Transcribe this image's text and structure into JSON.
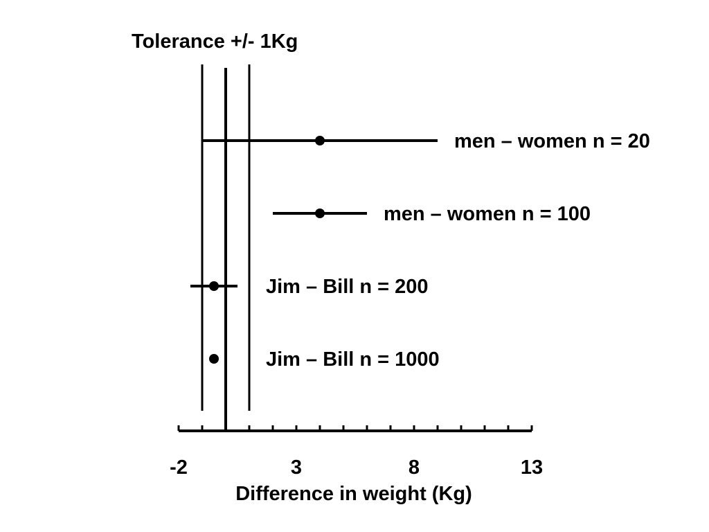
{
  "chart_data": {
    "type": "scatter",
    "title": "Tolerance +/- 1Kg",
    "xlabel": "Difference in weight (Kg)",
    "ylabel": "",
    "xlim": [
      -2,
      13
    ],
    "x_ticks": [
      "-2",
      "3",
      "8",
      "13"
    ],
    "tick_step": 1,
    "grid": false,
    "tolerance": {
      "center": 0,
      "lower": -1,
      "upper": 1
    },
    "series": [
      {
        "name": "men – women n = 20",
        "estimate": 4,
        "ci": [
          -1,
          9
        ]
      },
      {
        "name": "men – women n = 100",
        "estimate": 4,
        "ci": [
          2,
          6
        ]
      },
      {
        "name": "Jim – Bill n = 200",
        "estimate": -0.5,
        "ci": [
          -1.5,
          0.5
        ]
      },
      {
        "name": "Jim – Bill n = 1000",
        "estimate": -0.5,
        "ci": [
          -0.5,
          -0.5
        ]
      }
    ]
  }
}
